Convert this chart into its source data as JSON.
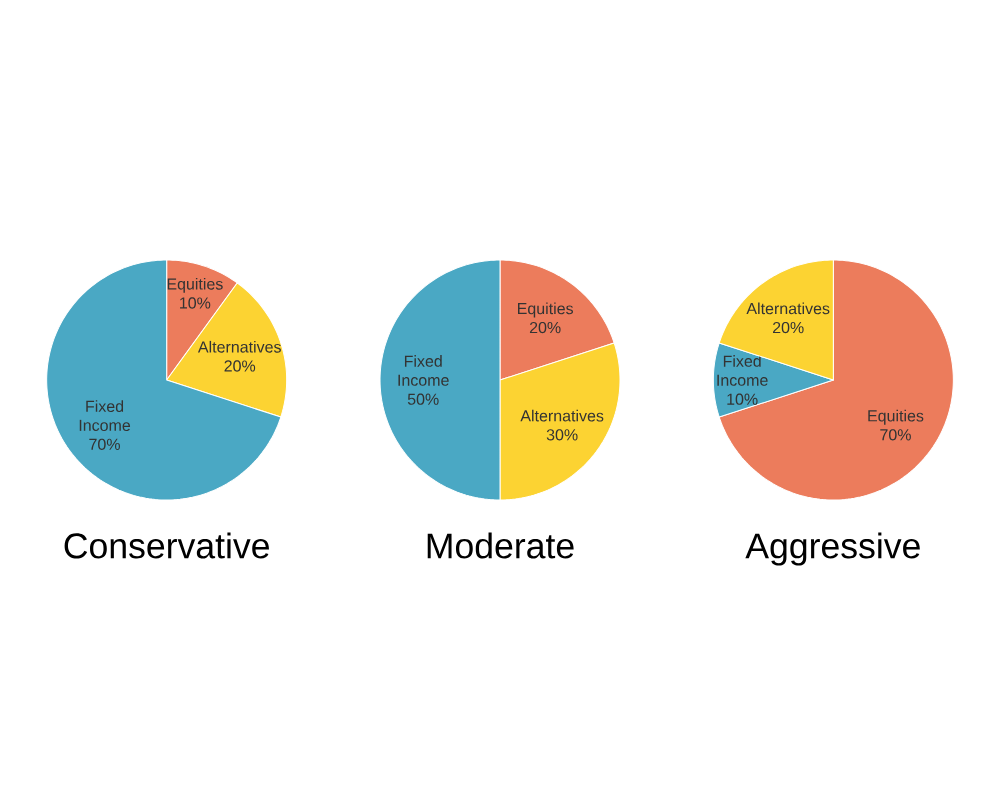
{
  "chart_data": [
    {
      "type": "pie",
      "title": "Conservative",
      "categories": [
        "Equities",
        "Alternatives",
        "Fixed Income"
      ],
      "values": [
        10,
        20,
        70
      ],
      "value_labels": [
        "10%",
        "20%",
        "70%"
      ],
      "colors": [
        "#ec7c5c",
        "#fcd332",
        "#4aa8c4"
      ]
    },
    {
      "type": "pie",
      "title": "Moderate",
      "categories": [
        "Equities",
        "Alternatives",
        "Fixed Income"
      ],
      "values": [
        20,
        30,
        50
      ],
      "value_labels": [
        "20%",
        "30%",
        "50%"
      ],
      "colors": [
        "#ec7c5c",
        "#fcd332",
        "#4aa8c4"
      ]
    },
    {
      "type": "pie",
      "title": "Aggressive",
      "categories": [
        "Equities",
        "Fixed Income",
        "Alternatives"
      ],
      "values": [
        70,
        10,
        20
      ],
      "value_labels": [
        "70%",
        "10%",
        "20%"
      ],
      "colors": [
        "#ec7c5c",
        "#4aa8c4",
        "#fcd332"
      ]
    }
  ]
}
